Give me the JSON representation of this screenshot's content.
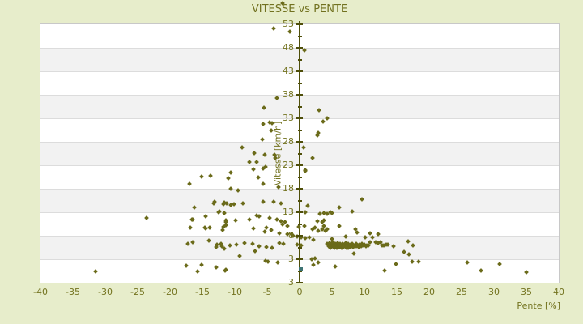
{
  "title": "VITESSE vs PENTE",
  "colors": {
    "background": "#e7edcb",
    "plot_background": "#ffffff",
    "band_stripe": "#f2f2f2",
    "gridline": "#dcdcdc",
    "plot_border": "#c8c8c8",
    "axis_line": "#4f4f0a",
    "label_text": "#73731f",
    "point": "#6b6b1a",
    "special_point": "#3d7373"
  },
  "chart_data": {
    "type": "scatter",
    "title": "VITESSE vs PENTE",
    "xlabel": "Pente [%]",
    "ylabel": "Vitesse [km/h]",
    "xlim": [
      -40,
      40
    ],
    "ylim": [
      -2,
      53
    ],
    "grid": "horizontal-bands",
    "legend": "none",
    "x_ticks": [
      "-40",
      "-35",
      "-30",
      "-25",
      "-20",
      "-15",
      "-10",
      "-5",
      "0",
      "5",
      "10",
      "15",
      "20",
      "25",
      "30",
      "35",
      "40"
    ],
    "y_ticks": [
      "53",
      "48",
      "43",
      "38",
      "33",
      "28",
      "23",
      "18",
      "13",
      "8",
      "3",
      "3"
    ],
    "series": [
      {
        "name": "vitesse-points",
        "marker": "diamond",
        "color": "#6b6b1a",
        "points": [
          [
            -2.6,
            57.5
          ],
          [
            -4.0,
            52.1
          ],
          [
            -1.5,
            51.4
          ],
          [
            0.8,
            47.5
          ],
          [
            -3.5,
            37.3
          ],
          [
            3.0,
            34.7
          ],
          [
            4.3,
            33.0
          ],
          [
            3.6,
            32.3
          ],
          [
            -4.3,
            32.0
          ],
          [
            -4.4,
            30.4
          ],
          [
            2.8,
            29.4
          ],
          [
            -5.5,
            35.2
          ],
          [
            -5.6,
            31.8
          ],
          [
            -4.6,
            32.1
          ],
          [
            2.9,
            29.9
          ],
          [
            -5.8,
            28.5
          ],
          [
            -8.9,
            26.8
          ],
          [
            -7.0,
            25.6
          ],
          [
            -5.4,
            25.2
          ],
          [
            -3.9,
            25.2
          ],
          [
            -7.8,
            23.7
          ],
          [
            -6.6,
            23.7
          ],
          [
            -5.6,
            22.3
          ],
          [
            -5.3,
            22.7
          ],
          [
            -7.1,
            22.1
          ],
          [
            -10.6,
            21.4
          ],
          [
            -11.0,
            20.2
          ],
          [
            -6.4,
            20.4
          ],
          [
            -5.6,
            19.0
          ],
          [
            -3.3,
            18.3
          ],
          [
            -10.6,
            18.0
          ],
          [
            -9.5,
            17.7
          ],
          [
            0.9,
            22.0
          ],
          [
            0.6,
            26.8
          ],
          [
            -3.8,
            24.6
          ],
          [
            2.0,
            24.6
          ],
          [
            0.9,
            21.8
          ],
          [
            -15.1,
            20.6
          ],
          [
            -13.8,
            20.8
          ],
          [
            -17.0,
            19.0
          ],
          [
            -13.1,
            15.2
          ],
          [
            -11.8,
            14.7
          ],
          [
            -16.3,
            14.0
          ],
          [
            -12.5,
            13.0
          ],
          [
            -11.6,
            12.8
          ],
          [
            -23.6,
            11.8
          ],
          [
            -16.6,
            11.4
          ],
          [
            -14.5,
            12.1
          ],
          [
            -11.4,
            11.3
          ],
          [
            -16.9,
            9.7
          ],
          [
            -14.5,
            9.6
          ],
          [
            -13.9,
            9.7
          ],
          [
            -11.9,
            9.2
          ],
          [
            -11.4,
            10.2
          ],
          [
            -17.3,
            6.3
          ],
          [
            -16.5,
            6.6
          ],
          [
            -14.0,
            7.0
          ],
          [
            -12.9,
            5.6
          ],
          [
            -12.0,
            5.8
          ],
          [
            -11.6,
            5.2
          ],
          [
            -17.5,
            1.6
          ],
          [
            -15.1,
            1.8
          ],
          [
            -15.8,
            0.4
          ],
          [
            -31.5,
            0.4
          ],
          [
            -11.4,
            0.8
          ],
          [
            -11.3,
            14.9
          ],
          [
            -13.2,
            14.9
          ],
          [
            -11.6,
            15.1
          ],
          [
            -10.6,
            14.5
          ],
          [
            -10.1,
            14.7
          ],
          [
            -8.8,
            14.9
          ],
          [
            -5.6,
            15.2
          ],
          [
            -4.0,
            15.2
          ],
          [
            -2.9,
            14.9
          ],
          [
            -12.4,
            13.2
          ],
          [
            -16.5,
            11.5
          ],
          [
            -11.4,
            10.9
          ],
          [
            -9.9,
            11.3
          ],
          [
            -7.8,
            11.4
          ],
          [
            -6.6,
            12.3
          ],
          [
            -6.3,
            12.1
          ],
          [
            -4.6,
            11.8
          ],
          [
            -3.5,
            11.4
          ],
          [
            -2.9,
            11.1
          ],
          [
            -2.3,
            10.9
          ],
          [
            -2.6,
            10.4
          ],
          [
            -1.9,
            10.1
          ],
          [
            -14.6,
            9.7
          ],
          [
            -11.8,
            9.9
          ],
          [
            -7.1,
            9.5
          ],
          [
            -5.1,
            9.7
          ],
          [
            -5.4,
            8.9
          ],
          [
            -4.4,
            9.2
          ],
          [
            -3.1,
            8.5
          ],
          [
            -1.9,
            8.3
          ],
          [
            -1.0,
            8.0
          ],
          [
            -12.8,
            6.1
          ],
          [
            -12.1,
            6.3
          ],
          [
            -10.8,
            5.9
          ],
          [
            -9.8,
            6.1
          ],
          [
            -8.5,
            6.4
          ],
          [
            -7.3,
            6.3
          ],
          [
            -6.9,
            4.7
          ],
          [
            -6.3,
            5.8
          ],
          [
            -5.1,
            5.6
          ],
          [
            -4.3,
            5.4
          ],
          [
            -3.1,
            6.4
          ],
          [
            -2.5,
            6.3
          ],
          [
            -9.3,
            3.7
          ],
          [
            -4.9,
            2.5
          ],
          [
            -3.4,
            2.3
          ],
          [
            -12.9,
            1.3
          ],
          [
            -11.5,
            0.6
          ],
          [
            9.6,
            15.7
          ],
          [
            1.3,
            14.3
          ],
          [
            6.1,
            14.0
          ],
          [
            8.1,
            13.1
          ],
          [
            0.9,
            13.0
          ],
          [
            3.1,
            12.7
          ],
          [
            3.8,
            12.8
          ],
          [
            4.3,
            12.7
          ],
          [
            4.8,
            13.0
          ],
          [
            5.0,
            12.8
          ],
          [
            2.8,
            11.1
          ],
          [
            3.5,
            10.9
          ],
          [
            3.8,
            11.3
          ],
          [
            -0.1,
            9.9
          ],
          [
            0.8,
            10.1
          ],
          [
            2.0,
            9.4
          ],
          [
            2.4,
            9.7
          ],
          [
            3.5,
            9.4
          ],
          [
            4.0,
            9.0
          ],
          [
            3.8,
            10.1
          ],
          [
            2.9,
            9.0
          ],
          [
            4.3,
            9.4
          ],
          [
            6.1,
            10.1
          ],
          [
            8.9,
            8.7
          ],
          [
            8.6,
            9.4
          ],
          [
            7.1,
            7.8
          ],
          [
            10.1,
            7.6
          ],
          [
            -1.3,
            8.3
          ],
          [
            -0.4,
            7.8
          ],
          [
            0.3,
            7.6
          ],
          [
            0.9,
            7.4
          ],
          [
            1.5,
            7.6
          ],
          [
            2.1,
            7.2
          ],
          [
            -0.4,
            6.1
          ],
          [
            0.3,
            5.9
          ],
          [
            2.4,
            3.2
          ],
          [
            2.9,
            2.3
          ],
          [
            5.5,
            1.5
          ],
          [
            11.3,
            7.6
          ],
          [
            12.1,
            8.3
          ],
          [
            5.0,
            7.3
          ],
          [
            11.8,
            6.6
          ],
          [
            12.1,
            6.4
          ],
          [
            12.5,
            6.6
          ],
          [
            7.5,
            5.4
          ],
          [
            8.4,
            4.2
          ],
          [
            2.1,
            1.8
          ],
          [
            1.9,
            3.0
          ],
          [
            -5.3,
            2.7
          ],
          [
            10.9,
            8.5
          ],
          [
            10.9,
            6.6
          ],
          [
            12.8,
            5.9
          ],
          [
            13.0,
            5.9
          ],
          [
            13.4,
            6.1
          ],
          [
            13.6,
            6.1
          ],
          [
            14.5,
            5.8
          ],
          [
            16.8,
            6.8
          ],
          [
            17.5,
            5.9
          ],
          [
            16.1,
            4.5
          ],
          [
            16.9,
            4.0
          ],
          [
            17.4,
            2.5
          ],
          [
            18.4,
            2.5
          ],
          [
            14.9,
            2.0
          ],
          [
            13.1,
            0.6
          ],
          [
            25.9,
            2.3
          ],
          [
            28.0,
            0.6
          ],
          [
            30.9,
            2.0
          ],
          [
            35.0,
            0.2
          ],
          [
            4.3,
            6.2
          ],
          [
            4.5,
            5.8
          ],
          [
            4.6,
            6.5
          ],
          [
            4.8,
            5.5
          ],
          [
            4.9,
            6.1
          ],
          [
            5.0,
            5.9
          ],
          [
            5.1,
            6.6
          ],
          [
            5.2,
            5.6
          ],
          [
            5.3,
            6.0
          ],
          [
            5.4,
            5.4
          ],
          [
            5.5,
            6.3
          ],
          [
            5.6,
            5.8
          ],
          [
            5.7,
            6.1
          ],
          [
            5.8,
            5.5
          ],
          [
            5.9,
            6.4
          ],
          [
            6.0,
            5.9
          ],
          [
            6.1,
            5.6
          ],
          [
            6.2,
            6.2
          ],
          [
            6.3,
            5.8
          ],
          [
            6.4,
            6.0
          ],
          [
            6.5,
            5.5
          ],
          [
            6.6,
            6.3
          ],
          [
            6.7,
            5.9
          ],
          [
            6.8,
            5.6
          ],
          [
            6.9,
            6.1
          ],
          [
            7.0,
            5.8
          ],
          [
            7.1,
            6.4
          ],
          [
            7.2,
            5.5
          ],
          [
            7.3,
            6.0
          ],
          [
            7.4,
            5.7
          ],
          [
            7.5,
            6.2
          ],
          [
            7.6,
            5.9
          ],
          [
            7.8,
            5.6
          ],
          [
            7.9,
            6.1
          ],
          [
            8.0,
            5.8
          ],
          [
            8.1,
            6.3
          ],
          [
            8.3,
            5.6
          ],
          [
            8.4,
            6.0
          ],
          [
            8.5,
            5.8
          ],
          [
            8.7,
            6.2
          ],
          [
            8.8,
            5.7
          ],
          [
            9.0,
            6.0
          ],
          [
            9.1,
            5.6
          ],
          [
            9.3,
            6.1
          ],
          [
            9.5,
            5.8
          ],
          [
            9.6,
            6.3
          ],
          [
            9.8,
            5.9
          ],
          [
            10.0,
            6.1
          ],
          [
            10.2,
            5.7
          ],
          [
            10.4,
            6.0
          ],
          [
            10.6,
            5.9
          ]
        ]
      },
      {
        "name": "special-point",
        "marker": "square",
        "color": "#3d7373",
        "points": [
          [
            0.3,
            0.8
          ]
        ]
      }
    ]
  }
}
